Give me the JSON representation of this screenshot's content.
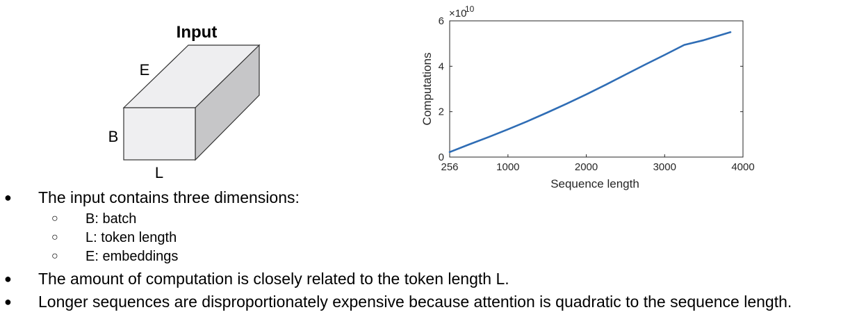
{
  "diagram": {
    "title": "Input",
    "labels": {
      "embeddings": "E",
      "batch": "B",
      "length": "L"
    },
    "colors": {
      "front": "#efeff1",
      "top": "#eeeef0",
      "side": "#c6c6c8",
      "edge": "#333333"
    }
  },
  "chart_data": {
    "type": "line",
    "xlabel": "Sequence length",
    "ylabel": "Computations",
    "exponent_prefix": "×10",
    "exponent": "10",
    "xlim": [
      256,
      4000
    ],
    "ylim": [
      0,
      6
    ],
    "xticks": [
      "256",
      "1000",
      "2000",
      "3000",
      "4000"
    ],
    "yticks": [
      "0",
      "2",
      "4",
      "6"
    ],
    "grid": false,
    "line_color": "#2f6db5",
    "series": [
      {
        "x": [
          256,
          500,
          750,
          1000,
          1250,
          1500,
          1750,
          2000,
          2250,
          2500,
          2750,
          3000,
          3250,
          3500,
          3840
        ],
        "values": [
          0.22,
          0.55,
          0.88,
          1.22,
          1.58,
          1.96,
          2.35,
          2.76,
          3.19,
          3.63,
          4.07,
          4.5,
          4.94,
          5.15,
          5.5
        ]
      }
    ]
  },
  "bullets": {
    "b1": "The input contains three dimensions:",
    "sub": [
      "B: batch",
      "L: token length",
      "E: embeddings"
    ],
    "b2": "The amount of computation is closely related to the token length L.",
    "b3": "Longer sequences are disproportionately expensive because attention is quadratic to the sequence length.",
    "bullet_glyph": "●",
    "sub_glyph": "○"
  }
}
